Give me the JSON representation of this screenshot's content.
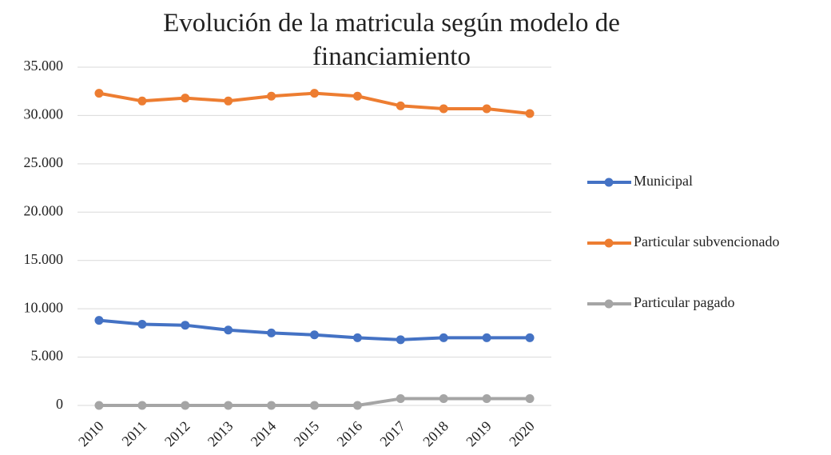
{
  "chart_data": {
    "type": "line",
    "title": "Evolución de la matricula según modelo de financiamiento",
    "categories": [
      "2010",
      "2011",
      "2012",
      "2013",
      "2014",
      "2015",
      "2016",
      "2017",
      "2018",
      "2019",
      "2020"
    ],
    "series": [
      {
        "name": "Municipal",
        "color": "#4472c4",
        "values": [
          8800,
          8400,
          8300,
          7800,
          7500,
          7300,
          7000,
          6800,
          7000,
          7000,
          7000
        ]
      },
      {
        "name": "Particular subvencionado",
        "color": "#ed7d31",
        "values": [
          32300,
          31500,
          31800,
          31500,
          32000,
          32300,
          32000,
          31000,
          30700,
          30700,
          30200
        ]
      },
      {
        "name": "Particular pagado",
        "color": "#a5a5a5",
        "values": [
          0,
          0,
          0,
          0,
          0,
          0,
          0,
          700,
          700,
          700,
          700
        ]
      }
    ],
    "ylim": [
      0,
      35000
    ],
    "yticks": [
      0,
      {
        "value": 5000,
        "label": "5.000"
      },
      {
        "value": 10000,
        "label": "10.000"
      },
      {
        "value": 15000,
        "label": "15.000"
      },
      {
        "value": 20000,
        "label": "20.000"
      },
      {
        "value": 25000,
        "label": "25.000"
      },
      {
        "value": 30000,
        "label": "30.000"
      },
      {
        "value": 35000,
        "label": "35.000"
      }
    ],
    "grid": true,
    "legend": "right"
  }
}
